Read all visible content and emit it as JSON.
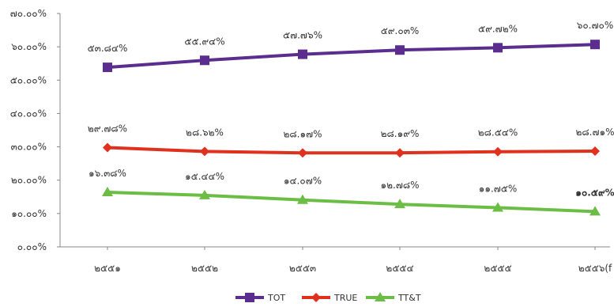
{
  "chart_data": {
    "type": "line",
    "title": "",
    "xlabel": "",
    "ylabel": "",
    "categories": [
      "๒๕๕๑",
      "๒๕๕๒",
      "๒๕๕๓",
      "๒๕๕๔",
      "๒๕๕๕",
      "๒๕๕๖(f"
    ],
    "y_ticks": [
      "๐.๐๐%",
      "๑๐.๐๐%",
      "๒๐.๐๐%",
      "๓๐.๐๐%",
      "๔๐.๐๐%",
      "๕๐.๐๐%",
      "๖๐.๐๐%",
      "๗๐.๐๐%"
    ],
    "ylim": [
      0,
      70
    ],
    "grid": false,
    "legend_position": "bottom",
    "series": [
      {
        "name": "TOT",
        "color": "#5b2d8e",
        "marker": "square",
        "values": [
          53.84,
          55.94,
          57.76,
          59.03,
          59.72,
          60.7
        ],
        "labels": [
          "๕๓.๘๔%",
          "๕๕.๙๔%",
          "๕๗.๗๖%",
          "๕๙.๐๓%",
          "๕๙.๗๒%",
          "๖๐.๗๐%"
        ]
      },
      {
        "name": "TRUE",
        "color": "#e0301e",
        "marker": "diamond",
        "values": [
          29.78,
          28.62,
          28.17,
          28.19,
          28.54,
          28.71
        ],
        "labels": [
          "๒๙.๗๘%",
          "๒๘.๖๒%",
          "๒๘.๑๗%",
          "๒๘.๑๙%",
          "๒๘.๕๔%",
          "๒๘.๗๑%"
        ]
      },
      {
        "name": "TT&T",
        "color": "#6cbd45",
        "marker": "triangle",
        "values": [
          16.38,
          15.44,
          14.07,
          12.78,
          11.75,
          10.59
        ],
        "labels": [
          "๑๖.๓๘%",
          "๑๕.๔๔%",
          "๑๔.๐๗%",
          "๑๒.๗๘%",
          "๑๑.๗๕%",
          "๑๐.๕๙%"
        ]
      }
    ]
  }
}
